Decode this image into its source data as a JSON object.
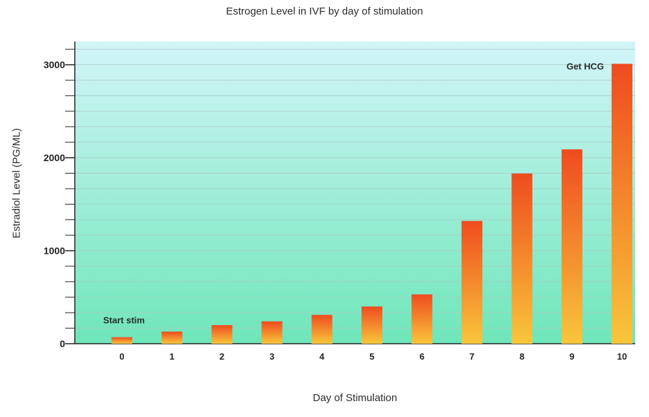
{
  "chart_data": {
    "type": "bar",
    "title": "Estrogen Level in IVF by day of stimulation",
    "xlabel": "Day of Stimulation",
    "ylabel": "Estradiol Level (PG/ML)",
    "categories": [
      "0",
      "1",
      "2",
      "3",
      "4",
      "5",
      "6",
      "7",
      "8",
      "9",
      "10"
    ],
    "values": [
      70,
      130,
      200,
      240,
      310,
      400,
      530,
      1320,
      1830,
      2090,
      3010
    ],
    "ylim": [
      0,
      3250
    ],
    "yticks": [
      "0",
      "1000",
      "2000",
      "3000"
    ],
    "grid": true,
    "annotations": [
      {
        "text": "Start stim",
        "category": "0"
      },
      {
        "text": "Get HCG",
        "category": "10"
      }
    ],
    "colors": {
      "bar_top": "#ef4b1f",
      "bar_bottom": "#f8c63b",
      "bg_top": "#d2f5f8",
      "bg_bottom": "#6ee6b9",
      "gridline": "#a9c9c5"
    }
  }
}
